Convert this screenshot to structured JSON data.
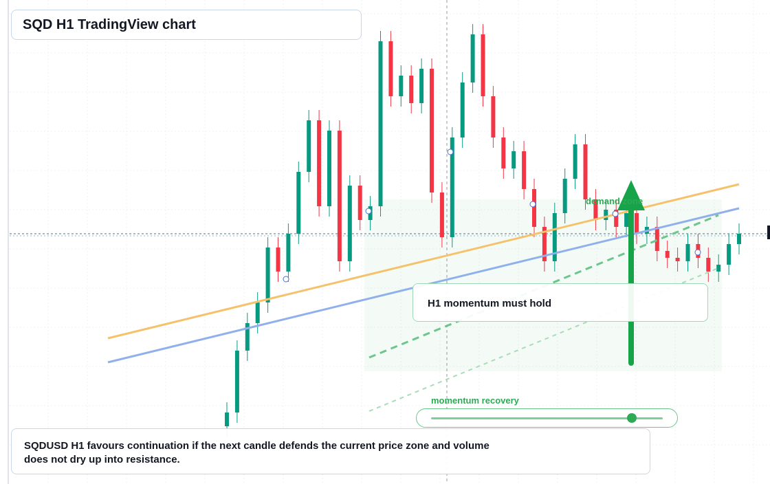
{
  "chart_data": {
    "type": "candlestick",
    "title": "SQD H1 TradingView chart",
    "open": [
      84,
      104,
      194,
      234,
      264,
      344,
      309,
      364,
      454,
      529,
      404,
      514,
      324,
      434,
      384,
      404,
      644,
      564,
      594,
      554,
      604,
      424,
      359,
      504,
      584,
      654,
      564,
      504,
      459,
      484,
      429,
      374,
      324,
      394,
      444,
      494,
      414,
      384,
      399,
      374,
      394,
      364,
      374,
      339,
      329,
      324,
      349,
      329,
      309,
      319,
      349
    ],
    "high": [
      119,
      209,
      249,
      279,
      359,
      359,
      379,
      469,
      544,
      544,
      529,
      529,
      449,
      449,
      419,
      659,
      659,
      609,
      609,
      619,
      619,
      439,
      519,
      599,
      669,
      669,
      579,
      519,
      499,
      499,
      444,
      389,
      409,
      459,
      509,
      509,
      429,
      414,
      414,
      409,
      409,
      389,
      389,
      354,
      344,
      364,
      364,
      344,
      334,
      364,
      379
    ],
    "low": [
      69,
      89,
      179,
      219,
      249,
      294,
      294,
      349,
      439,
      389,
      389,
      309,
      309,
      369,
      369,
      389,
      549,
      549,
      539,
      539,
      409,
      344,
      344,
      489,
      569,
      549,
      489,
      444,
      444,
      414,
      359,
      309,
      309,
      379,
      429,
      399,
      369,
      369,
      359,
      359,
      349,
      349,
      324,
      314,
      309,
      309,
      314,
      294,
      294,
      304,
      334
    ],
    "close": [
      104,
      194,
      234,
      264,
      344,
      309,
      364,
      454,
      529,
      404,
      514,
      324,
      434,
      384,
      404,
      644,
      564,
      594,
      554,
      604,
      424,
      359,
      504,
      584,
      654,
      564,
      504,
      459,
      484,
      429,
      374,
      324,
      394,
      444,
      494,
      414,
      384,
      399,
      374,
      394,
      364,
      374,
      339,
      329,
      324,
      349,
      329,
      309,
      319,
      349,
      364
    ],
    "up_color": "#089981",
    "down_color": "#f23645",
    "ylim": [
      0,
      704
    ],
    "annotations": [
      "demand zone",
      "H1 momentum must hold",
      "momentum recovery"
    ],
    "caption": "SQDUSD H1 favours continuation if the next candle defends the current price zone and volume does not dry up into resistance."
  }
}
